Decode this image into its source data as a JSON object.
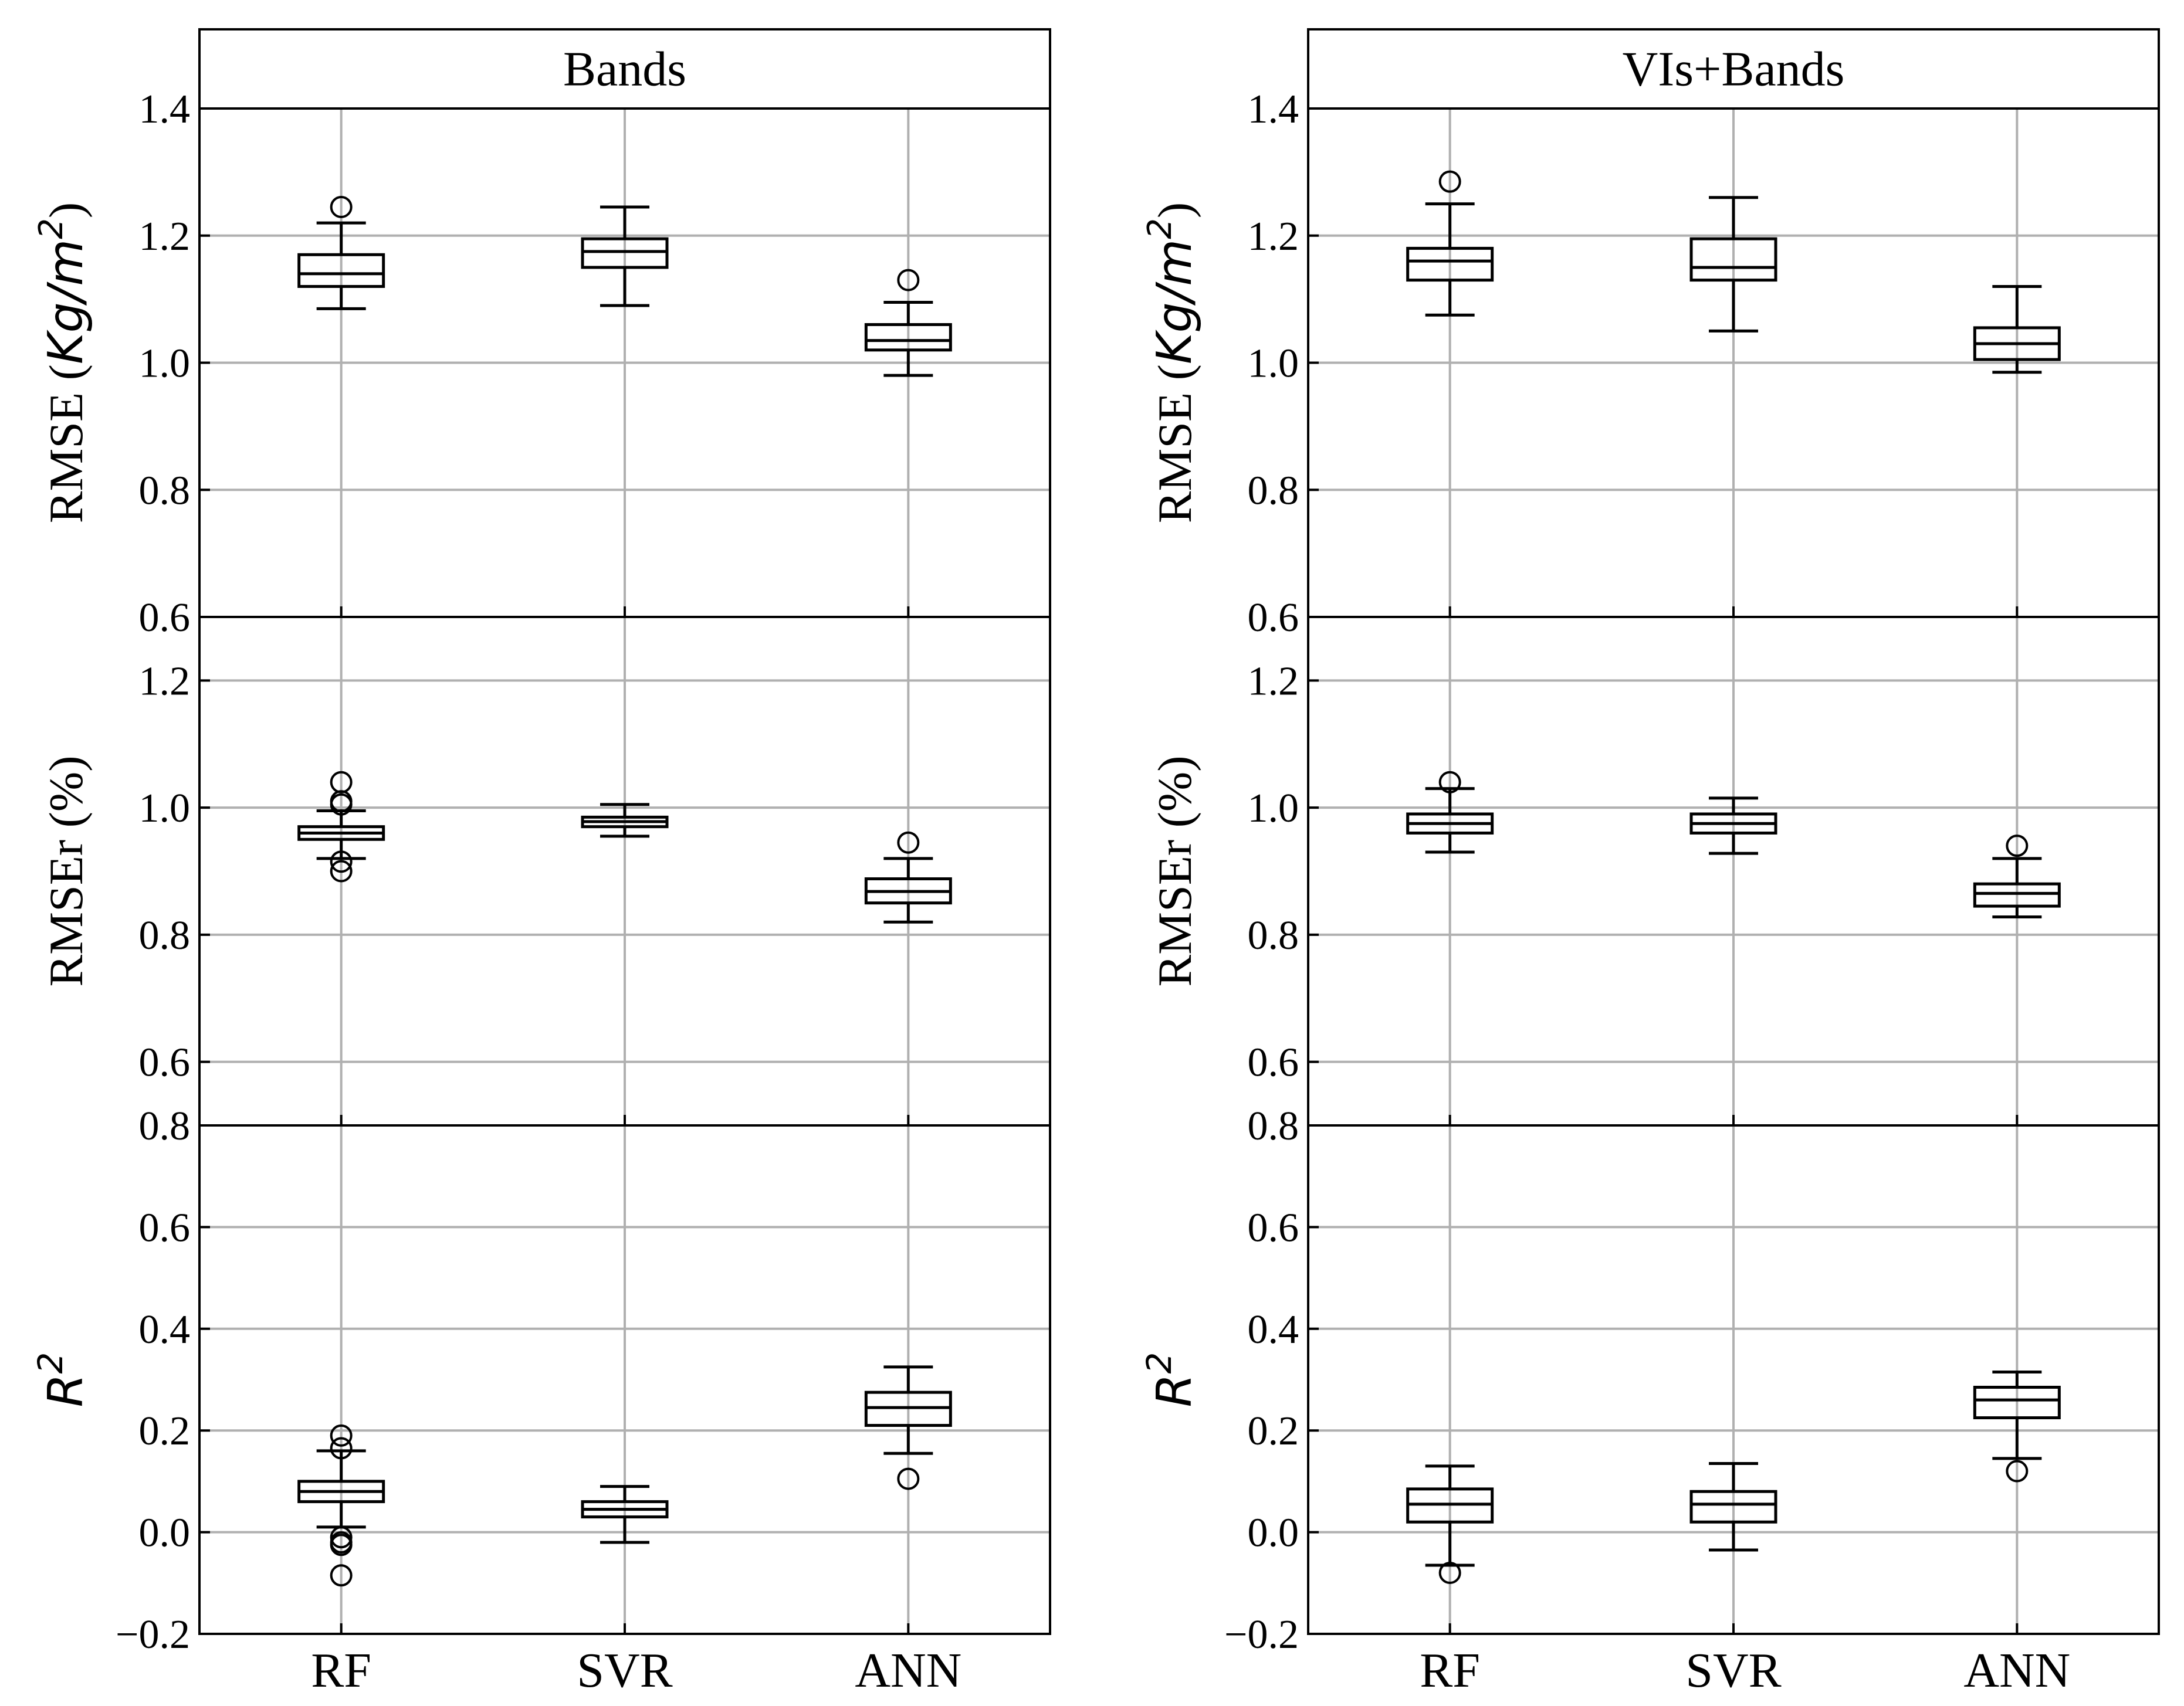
{
  "chart_data": {
    "type": "box",
    "columns": [
      "Bands",
      "VIs+Bands"
    ],
    "rows": [
      {
        "ylabel": "RMSE",
        "ylabel_unit": "Kg/m2",
        "ylim": [
          0.6,
          1.4
        ],
        "yticks": [
          "0.6",
          "0.8",
          "1.0",
          "1.2",
          "1.4"
        ]
      },
      {
        "ylabel": "RMSEr (%)",
        "ylim": [
          0.5,
          1.3
        ],
        "yticks": [
          "0.6",
          "0.8",
          "1.0",
          "1.2"
        ]
      },
      {
        "ylabel": "R2",
        "ylim": [
          -0.2,
          0.8
        ],
        "yticks": [
          "−0.2",
          "0.0",
          "0.2",
          "0.4",
          "0.6",
          "0.8"
        ]
      }
    ],
    "categories": [
      "RF",
      "SVR",
      "ANN"
    ],
    "panels": [
      {
        "column": 0,
        "row": 0,
        "boxes": [
          {
            "whislo": 1.085,
            "q1": 1.12,
            "med": 1.14,
            "q3": 1.17,
            "whishi": 1.22,
            "fliers": [
              1.245
            ]
          },
          {
            "whislo": 1.09,
            "q1": 1.15,
            "med": 1.175,
            "q3": 1.195,
            "whishi": 1.245,
            "fliers": []
          },
          {
            "whislo": 0.98,
            "q1": 1.02,
            "med": 1.035,
            "q3": 1.06,
            "whishi": 1.095,
            "fliers": [
              1.13
            ]
          }
        ]
      },
      {
        "column": 1,
        "row": 0,
        "boxes": [
          {
            "whislo": 1.075,
            "q1": 1.13,
            "med": 1.16,
            "q3": 1.18,
            "whishi": 1.25,
            "fliers": [
              1.285
            ]
          },
          {
            "whislo": 1.05,
            "q1": 1.13,
            "med": 1.15,
            "q3": 1.195,
            "whishi": 1.26,
            "fliers": []
          },
          {
            "whislo": 0.985,
            "q1": 1.005,
            "med": 1.03,
            "q3": 1.055,
            "whishi": 1.12,
            "fliers": []
          }
        ]
      },
      {
        "column": 0,
        "row": 1,
        "boxes": [
          {
            "whislo": 0.92,
            "q1": 0.95,
            "med": 0.96,
            "q3": 0.97,
            "whishi": 0.995,
            "fliers": [
              1.04,
              1.01,
              1.005,
              0.915,
              0.9
            ]
          },
          {
            "whislo": 0.955,
            "q1": 0.97,
            "med": 0.978,
            "q3": 0.985,
            "whishi": 1.005,
            "fliers": []
          },
          {
            "whislo": 0.82,
            "q1": 0.85,
            "med": 0.868,
            "q3": 0.888,
            "whishi": 0.92,
            "fliers": [
              0.945
            ]
          }
        ]
      },
      {
        "column": 1,
        "row": 1,
        "boxes": [
          {
            "whislo": 0.93,
            "q1": 0.96,
            "med": 0.975,
            "q3": 0.99,
            "whishi": 1.03,
            "fliers": [
              1.04
            ]
          },
          {
            "whislo": 0.928,
            "q1": 0.96,
            "med": 0.975,
            "q3": 0.99,
            "whishi": 1.015,
            "fliers": []
          },
          {
            "whislo": 0.828,
            "q1": 0.845,
            "med": 0.865,
            "q3": 0.88,
            "whishi": 0.92,
            "fliers": [
              0.94
            ]
          }
        ]
      },
      {
        "column": 0,
        "row": 2,
        "boxes": [
          {
            "whislo": 0.01,
            "q1": 0.06,
            "med": 0.08,
            "q3": 0.1,
            "whishi": 0.16,
            "fliers": [
              0.19,
              0.165,
              -0.01,
              -0.02,
              -0.025,
              -0.085
            ]
          },
          {
            "whislo": -0.02,
            "q1": 0.03,
            "med": 0.045,
            "q3": 0.06,
            "whishi": 0.09,
            "fliers": []
          },
          {
            "whislo": 0.155,
            "q1": 0.21,
            "med": 0.245,
            "q3": 0.275,
            "whishi": 0.325,
            "fliers": [
              0.105
            ]
          }
        ]
      },
      {
        "column": 1,
        "row": 2,
        "boxes": [
          {
            "whislo": -0.065,
            "q1": 0.02,
            "med": 0.055,
            "q3": 0.085,
            "whishi": 0.13,
            "fliers": [
              -0.08
            ]
          },
          {
            "whislo": -0.035,
            "q1": 0.02,
            "med": 0.055,
            "q3": 0.08,
            "whishi": 0.135,
            "fliers": []
          },
          {
            "whislo": 0.145,
            "q1": 0.225,
            "med": 0.26,
            "q3": 0.285,
            "whishi": 0.315,
            "fliers": [
              0.12
            ]
          }
        ]
      }
    ],
    "grid": true
  }
}
